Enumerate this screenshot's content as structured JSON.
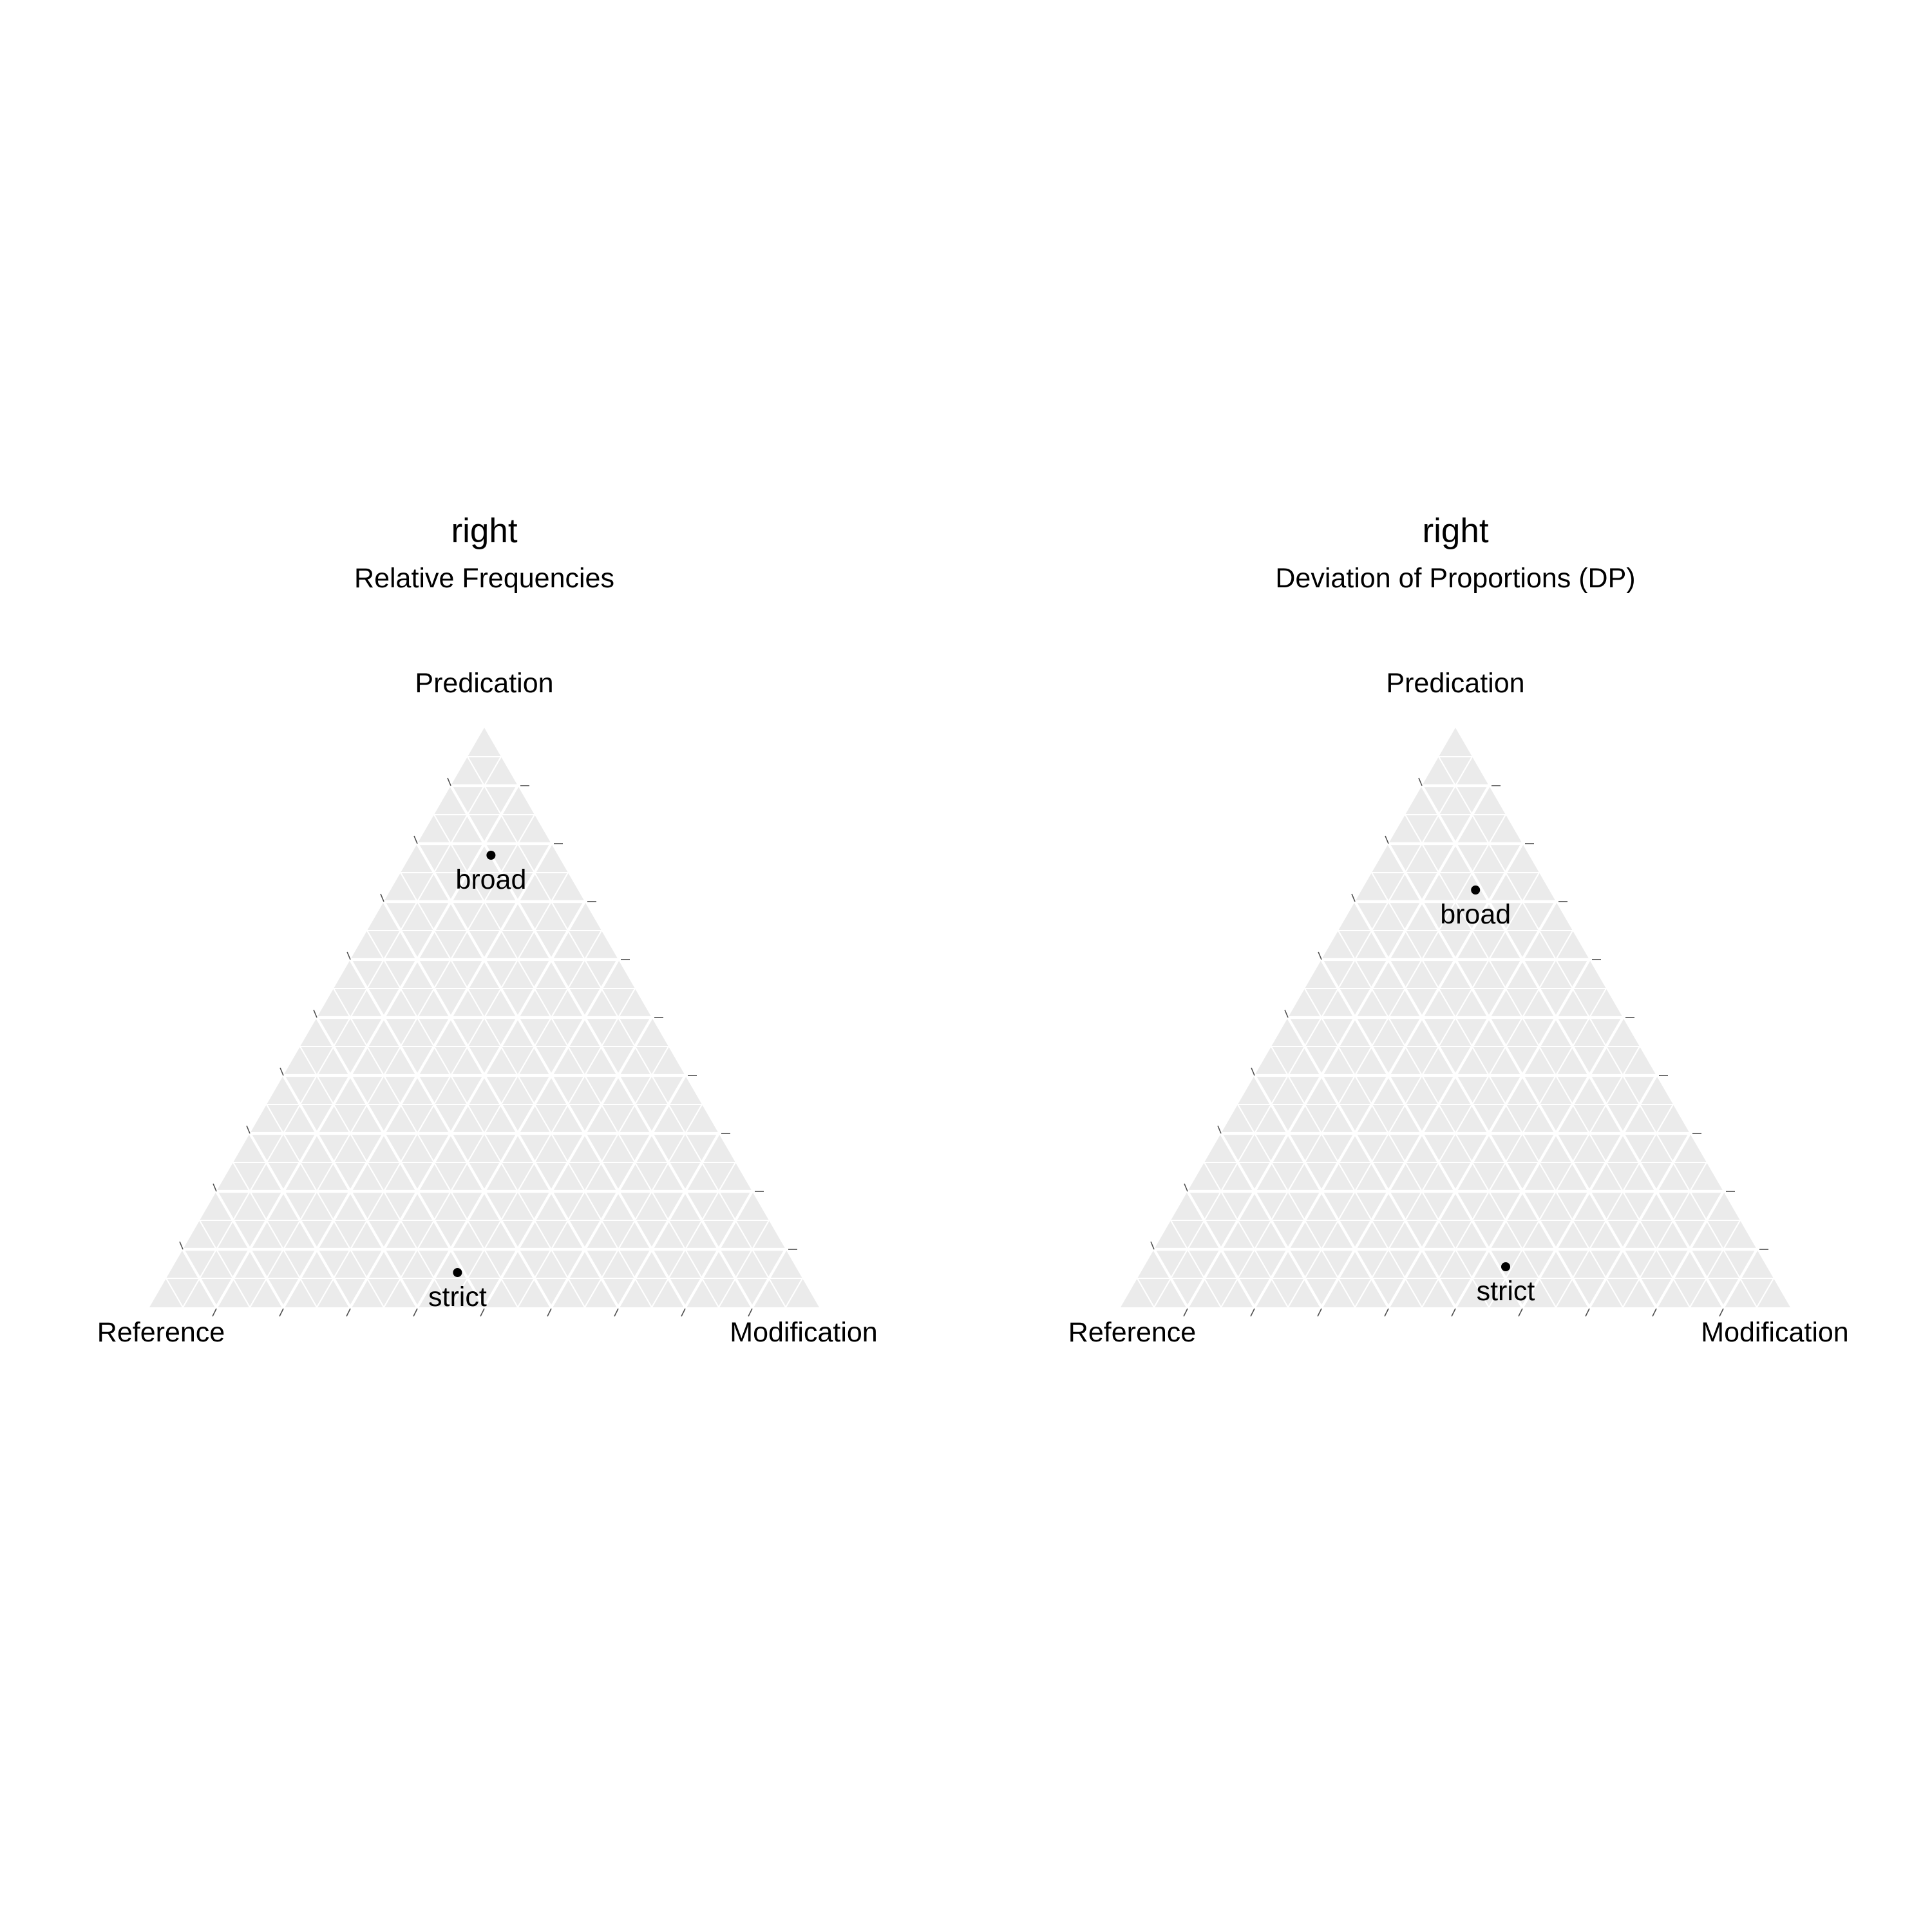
{
  "chart_data": [
    {
      "type": "ternary",
      "title": "right",
      "subtitle": "Relative Frequencies",
      "axes": {
        "left": "Reference",
        "top": "Predication",
        "right": "Modification"
      },
      "grid": true,
      "points": [
        {
          "label": "broad",
          "reference": 0.1,
          "predication": 0.78,
          "modification": 0.12
        },
        {
          "label": "strict",
          "reference": 0.51,
          "predication": 0.06,
          "modification": 0.43
        }
      ]
    },
    {
      "type": "ternary",
      "title": "right",
      "subtitle": "Deviation of Proportions (DP)",
      "axes": {
        "left": "Reference",
        "top": "Predication",
        "right": "Modification"
      },
      "grid": true,
      "points": [
        {
          "label": "broad",
          "reference": 0.11,
          "predication": 0.72,
          "modification": 0.17
        },
        {
          "label": "strict",
          "reference": 0.39,
          "predication": 0.07,
          "modification": 0.54
        }
      ]
    }
  ]
}
